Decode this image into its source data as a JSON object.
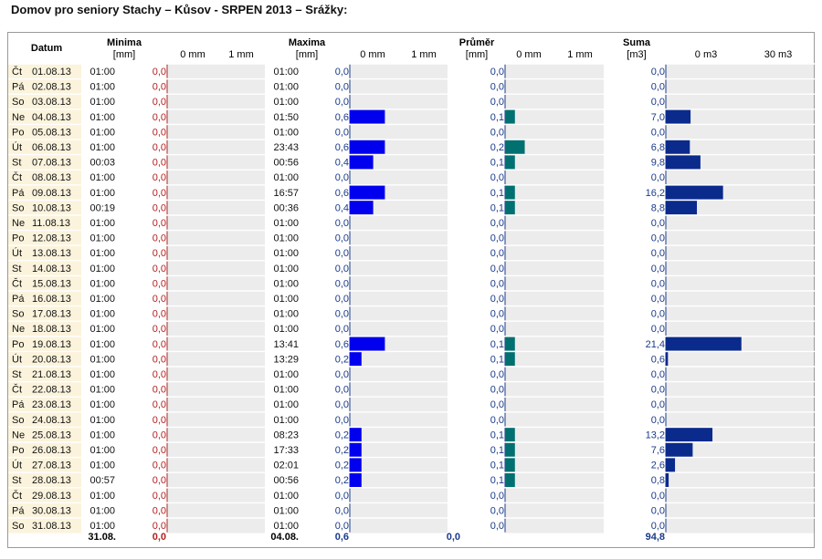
{
  "title": "Domov pro seniory Stachy – Kůsov - SRPEN 2013 – Srážky:",
  "headers": {
    "datum": "Datum",
    "minima": "Minima",
    "minima_unit": "[mm]",
    "maxima": "Maxima",
    "maxima_unit": "[mm]",
    "prumer": "Průměr",
    "prumer_unit": "[mm]",
    "suma": "Suma",
    "suma_unit": "[m3]"
  },
  "scales": {
    "minima": [
      "0 mm",
      "1 mm"
    ],
    "maxima": [
      "0 mm",
      "1 mm"
    ],
    "prumer": [
      "0 mm",
      "1 mm"
    ],
    "suma": [
      "0 m3",
      "30 m3"
    ]
  },
  "colors": {
    "minima_value": "#b22222",
    "maxima_bar": "#0000ee",
    "prumer_bar": "#007070",
    "suma_bar": "#0a2a8c",
    "value_text": "#1a3a8a",
    "date_bg": "#fbf3dc",
    "bar_bg": "#ececec"
  },
  "chart_data": {
    "type": "table",
    "rows": [
      {
        "day": "Čt",
        "date": "01.08.13",
        "min_time": "01:00",
        "min": "0,0",
        "max_time": "01:00",
        "max": "0,0",
        "avg": "0,0",
        "sum": "0,0"
      },
      {
        "day": "Pá",
        "date": "02.08.13",
        "min_time": "01:00",
        "min": "0,0",
        "max_time": "01:00",
        "max": "0,0",
        "avg": "0,0",
        "sum": "0,0"
      },
      {
        "day": "So",
        "date": "03.08.13",
        "min_time": "01:00",
        "min": "0,0",
        "max_time": "01:00",
        "max": "0,0",
        "avg": "0,0",
        "sum": "0,0"
      },
      {
        "day": "Ne",
        "date": "04.08.13",
        "min_time": "01:00",
        "min": "0,0",
        "max_time": "01:50",
        "max": "0,6",
        "avg": "0,1",
        "sum": "7,0"
      },
      {
        "day": "Po",
        "date": "05.08.13",
        "min_time": "01:00",
        "min": "0,0",
        "max_time": "01:00",
        "max": "0,0",
        "avg": "0,0",
        "sum": "0,0"
      },
      {
        "day": "Út",
        "date": "06.08.13",
        "min_time": "01:00",
        "min": "0,0",
        "max_time": "23:43",
        "max": "0,6",
        "avg": "0,2",
        "sum": "6,8"
      },
      {
        "day": "St",
        "date": "07.08.13",
        "min_time": "00:03",
        "min": "0,0",
        "max_time": "00:56",
        "max": "0,4",
        "avg": "0,1",
        "sum": "9,8"
      },
      {
        "day": "Čt",
        "date": "08.08.13",
        "min_time": "01:00",
        "min": "0,0",
        "max_time": "01:00",
        "max": "0,0",
        "avg": "0,0",
        "sum": "0,0"
      },
      {
        "day": "Pá",
        "date": "09.08.13",
        "min_time": "01:00",
        "min": "0,0",
        "max_time": "16:57",
        "max": "0,6",
        "avg": "0,1",
        "sum": "16,2"
      },
      {
        "day": "So",
        "date": "10.08.13",
        "min_time": "00:19",
        "min": "0,0",
        "max_time": "00:36",
        "max": "0,4",
        "avg": "0,1",
        "sum": "8,8"
      },
      {
        "day": "Ne",
        "date": "11.08.13",
        "min_time": "01:00",
        "min": "0,0",
        "max_time": "01:00",
        "max": "0,0",
        "avg": "0,0",
        "sum": "0,0"
      },
      {
        "day": "Po",
        "date": "12.08.13",
        "min_time": "01:00",
        "min": "0,0",
        "max_time": "01:00",
        "max": "0,0",
        "avg": "0,0",
        "sum": "0,0"
      },
      {
        "day": "Út",
        "date": "13.08.13",
        "min_time": "01:00",
        "min": "0,0",
        "max_time": "01:00",
        "max": "0,0",
        "avg": "0,0",
        "sum": "0,0"
      },
      {
        "day": "St",
        "date": "14.08.13",
        "min_time": "01:00",
        "min": "0,0",
        "max_time": "01:00",
        "max": "0,0",
        "avg": "0,0",
        "sum": "0,0"
      },
      {
        "day": "Čt",
        "date": "15.08.13",
        "min_time": "01:00",
        "min": "0,0",
        "max_time": "01:00",
        "max": "0,0",
        "avg": "0,0",
        "sum": "0,0"
      },
      {
        "day": "Pá",
        "date": "16.08.13",
        "min_time": "01:00",
        "min": "0,0",
        "max_time": "01:00",
        "max": "0,0",
        "avg": "0,0",
        "sum": "0,0"
      },
      {
        "day": "So",
        "date": "17.08.13",
        "min_time": "01:00",
        "min": "0,0",
        "max_time": "01:00",
        "max": "0,0",
        "avg": "0,0",
        "sum": "0,0"
      },
      {
        "day": "Ne",
        "date": "18.08.13",
        "min_time": "01:00",
        "min": "0,0",
        "max_time": "01:00",
        "max": "0,0",
        "avg": "0,0",
        "sum": "0,0"
      },
      {
        "day": "Po",
        "date": "19.08.13",
        "min_time": "01:00",
        "min": "0,0",
        "max_time": "13:41",
        "max": "0,6",
        "avg": "0,1",
        "sum": "21,4"
      },
      {
        "day": "Út",
        "date": "20.08.13",
        "min_time": "01:00",
        "min": "0,0",
        "max_time": "13:29",
        "max": "0,2",
        "avg": "0,1",
        "sum": "0,6"
      },
      {
        "day": "St",
        "date": "21.08.13",
        "min_time": "01:00",
        "min": "0,0",
        "max_time": "01:00",
        "max": "0,0",
        "avg": "0,0",
        "sum": "0,0"
      },
      {
        "day": "Čt",
        "date": "22.08.13",
        "min_time": "01:00",
        "min": "0,0",
        "max_time": "01:00",
        "max": "0,0",
        "avg": "0,0",
        "sum": "0,0"
      },
      {
        "day": "Pá",
        "date": "23.08.13",
        "min_time": "01:00",
        "min": "0,0",
        "max_time": "01:00",
        "max": "0,0",
        "avg": "0,0",
        "sum": "0,0"
      },
      {
        "day": "So",
        "date": "24.08.13",
        "min_time": "01:00",
        "min": "0,0",
        "max_time": "01:00",
        "max": "0,0",
        "avg": "0,0",
        "sum": "0,0"
      },
      {
        "day": "Ne",
        "date": "25.08.13",
        "min_time": "01:00",
        "min": "0,0",
        "max_time": "08:23",
        "max": "0,2",
        "avg": "0,1",
        "sum": "13,2"
      },
      {
        "day": "Po",
        "date": "26.08.13",
        "min_time": "01:00",
        "min": "0,0",
        "max_time": "17:33",
        "max": "0,2",
        "avg": "0,1",
        "sum": "7,6"
      },
      {
        "day": "Út",
        "date": "27.08.13",
        "min_time": "01:00",
        "min": "0,0",
        "max_time": "02:01",
        "max": "0,2",
        "avg": "0,1",
        "sum": "2,6"
      },
      {
        "day": "St",
        "date": "28.08.13",
        "min_time": "00:57",
        "min": "0,0",
        "max_time": "00:56",
        "max": "0,2",
        "avg": "0,1",
        "sum": "0,8"
      },
      {
        "day": "Čt",
        "date": "29.08.13",
        "min_time": "01:00",
        "min": "0,0",
        "max_time": "01:00",
        "max": "0,0",
        "avg": "0,0",
        "sum": "0,0"
      },
      {
        "day": "Pá",
        "date": "30.08.13",
        "min_time": "01:00",
        "min": "0,0",
        "max_time": "01:00",
        "max": "0,0",
        "avg": "0,0",
        "sum": "0,0"
      },
      {
        "day": "So",
        "date": "31.08.13",
        "min_time": "01:00",
        "min": "0,0",
        "max_time": "01:00",
        "max": "0,0",
        "avg": "0,0",
        "sum": "0,0"
      }
    ],
    "bar_scale_max": {
      "minima": 1,
      "maxima": 1,
      "prumer": 1,
      "suma": 30
    },
    "totals": {
      "min_date": "31.08.",
      "min": "0,0",
      "max_date": "04.08.",
      "max": "0,6",
      "avg": "0,0",
      "sum": "94,8"
    }
  }
}
